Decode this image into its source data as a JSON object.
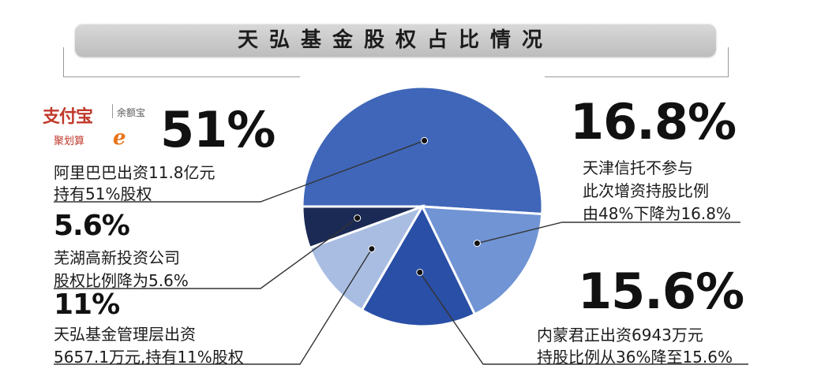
{
  "title": "天弘基金股权占比情况",
  "logos": {
    "alipay": "支付宝",
    "yuebao": "余额宝",
    "juhuasuan": "聚划算",
    "alibaba": "e"
  },
  "chart_data": {
    "type": "pie",
    "title": "天弘基金股权占比情况",
    "slices": [
      {
        "label": "阿里巴巴",
        "value": 51,
        "color": "#3f66b8"
      },
      {
        "label": "天津信托",
        "value": 16.8,
        "color": "#7094d4"
      },
      {
        "label": "内蒙君正",
        "value": 15.6,
        "color": "#2a4fa6"
      },
      {
        "label": "天弘基金管理层",
        "value": 11,
        "color": "#a9bde2"
      },
      {
        "label": "芜湖高新投资公司",
        "value": 5.6,
        "color": "#1b2a55"
      }
    ]
  },
  "annotations": {
    "alibaba": {
      "pct": "51%",
      "line1": "阿里巴巴出资11.8亿元",
      "line2": "持有51%股权"
    },
    "tianjin": {
      "pct": "16.8%",
      "line1": "天津信托不参与",
      "line2": "此次增资持股比例",
      "line3": "由48%下降为16.8%"
    },
    "wuhu": {
      "pct": "5.6%",
      "line1": "芜湖高新投资公司",
      "line2": "股权比例降为5.6%"
    },
    "mgmt": {
      "pct": "11%",
      "line1": "天弘基金管理层出资",
      "line2": "5657.1万元,持有11%股权"
    },
    "neimeng": {
      "pct": "15.6%",
      "line1": "内蒙君正出资6943万元",
      "line2": "持股比例从36%降至15.6%"
    }
  }
}
